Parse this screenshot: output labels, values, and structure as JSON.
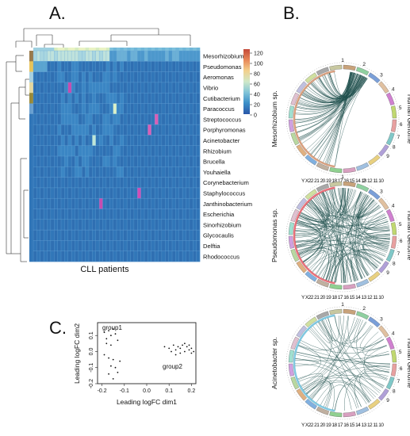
{
  "panels": {
    "a": "A.",
    "b": "B.",
    "c": "C."
  },
  "heatmap": {
    "xlabel": "CLL patients",
    "rows": [
      "Mesorhizobium",
      "Pseudomonas",
      "Aeromonas",
      "Vibrio",
      "Cutibacterium",
      "Paracoccus",
      "Streptococcus",
      "Porphyromonas",
      "Acinetobacter",
      "Rhizobium",
      "Brucella",
      "Youhaiella",
      "Corynebacterium",
      "Staphylococcus",
      "Janthinobacterium",
      "Escherichia",
      "Sinorhizobium",
      "Glycocaulis",
      "Delftia",
      "Rhodococcus"
    ],
    "colorbar_ticks": [
      "120",
      "100",
      "80",
      "60",
      "40",
      "20",
      "0"
    ],
    "colorbar_colors": [
      "#c44a3a",
      "#e8895a",
      "#f3d08c",
      "#cfe8c8",
      "#7fc3d8",
      "#3b8fc8",
      "#2a57a8"
    ]
  },
  "circos": {
    "genome_label": "Human Genome",
    "bottom_labels": "Y X22 21 20 19 18 17 16 15 14 13 12 11 10",
    "chromosomes": [
      "1",
      "2",
      "3",
      "4",
      "5",
      "6",
      "7",
      "8",
      "9",
      "10",
      "11",
      "12",
      "13",
      "14",
      "15",
      "16",
      "17",
      "18",
      "19",
      "20",
      "21",
      "22",
      "X",
      "Y"
    ],
    "plots": [
      {
        "label": "Mesorhizobium sp."
      },
      {
        "label": "Pseudomonas sp."
      },
      {
        "label": "Acinetobacter sp."
      }
    ],
    "link_color": "#1f4f4c"
  },
  "chart_data": {
    "type": "scatter",
    "xlabel": "Leading logFC dim1",
    "ylabel": "Leading logFC dim2",
    "xlim": [
      -0.22,
      0.22
    ],
    "ylim": [
      -0.2,
      0.18
    ],
    "xticks": [
      "-0.2",
      "-0.1",
      "0.0",
      "0.1",
      "0.2"
    ],
    "yticks": [
      "0.1",
      "0.0",
      "-0.1",
      "-0.2"
    ],
    "annotations": [
      "group1",
      "group2"
    ],
    "series": [
      {
        "points": [
          [
            -0.19,
            0.12
          ],
          [
            -0.18,
            0.08
          ],
          [
            -0.17,
            0.13
          ],
          [
            -0.16,
            0.1
          ],
          [
            -0.15,
            0.14
          ],
          [
            -0.14,
            0.11
          ],
          [
            -0.18,
            0.05
          ],
          [
            -0.16,
            0.04
          ],
          [
            -0.13,
            0.07
          ],
          [
            -0.19,
            -0.02
          ],
          [
            -0.17,
            -0.04
          ],
          [
            -0.15,
            -0.05
          ],
          [
            -0.16,
            -0.09
          ],
          [
            -0.14,
            -0.1
          ],
          [
            -0.13,
            -0.13
          ],
          [
            -0.17,
            -0.14
          ],
          [
            -0.15,
            -0.17
          ],
          [
            -0.12,
            -0.06
          ]
        ]
      },
      {
        "points": [
          [
            0.08,
            0.03
          ],
          [
            0.1,
            0.02
          ],
          [
            0.12,
            0.04
          ],
          [
            0.13,
            0.01
          ],
          [
            0.14,
            0.03
          ],
          [
            0.15,
            0.02
          ],
          [
            0.16,
            0.04
          ],
          [
            0.17,
            0.0
          ],
          [
            0.18,
            0.03
          ],
          [
            0.19,
            0.01
          ],
          [
            0.2,
            0.02
          ],
          [
            0.21,
            0.0
          ],
          [
            0.15,
            -0.01
          ],
          [
            0.17,
            0.05
          ],
          [
            0.19,
            0.04
          ],
          [
            0.11,
            0.0
          ],
          [
            0.13,
            -0.02
          ],
          [
            0.2,
            -0.01
          ]
        ]
      }
    ]
  }
}
